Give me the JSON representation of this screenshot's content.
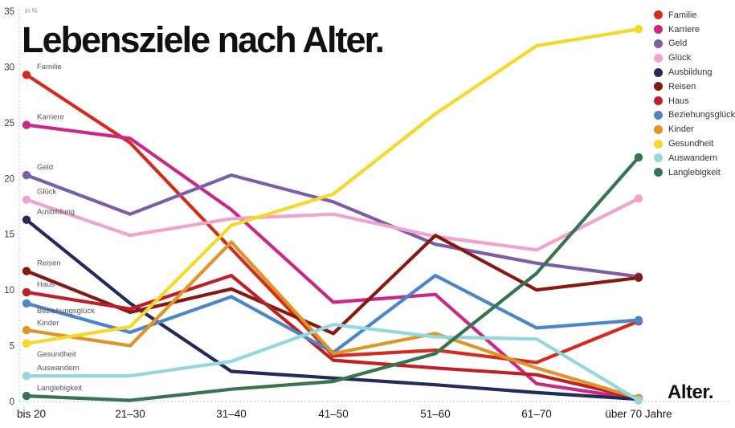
{
  "title": "Lebensziele nach Alter.",
  "unit_label": "in %",
  "x_axis_title": "Alter.",
  "chart_data": {
    "type": "line",
    "title": "Lebensziele nach Alter.",
    "ylabel": "in %",
    "xlabel": "Alter.",
    "ylim": [
      0,
      35
    ],
    "yticks": [
      0,
      5,
      10,
      15,
      20,
      25,
      30,
      35
    ],
    "grid": "dotted left axis and dotted zero baseline only",
    "legend_position": "top-right",
    "categories": [
      "bis 20",
      "21–30",
      "31–40",
      "41–50",
      "51–60",
      "61–70",
      "über 70 Jahre"
    ],
    "series": [
      {
        "name": "Familie",
        "color": "#d52b1e",
        "values": [
          29.3,
          23.2,
          13.7,
          4.1,
          4.6,
          3.5,
          7.2
        ]
      },
      {
        "name": "Karriere",
        "color": "#cc2687",
        "values": [
          24.8,
          23.6,
          17.2,
          8.9,
          9.6,
          1.6,
          0.2
        ]
      },
      {
        "name": "Geld",
        "color": "#7b5ea7",
        "values": [
          20.3,
          16.8,
          20.3,
          17.9,
          14.1,
          12.4,
          11.2
        ]
      },
      {
        "name": "Glück",
        "color": "#efa3cd",
        "values": [
          18.1,
          14.9,
          16.4,
          16.8,
          14.8,
          13.6,
          18.2
        ]
      },
      {
        "name": "Ausbildung",
        "color": "#232a5c",
        "values": [
          16.3,
          8.8,
          2.7,
          2.1,
          1.5,
          0.8,
          0.2
        ]
      },
      {
        "name": "Reisen",
        "color": "#871912",
        "values": [
          11.7,
          8.0,
          10.1,
          6.1,
          14.9,
          10.0,
          11.1
        ]
      },
      {
        "name": "Haus",
        "color": "#bf2026",
        "values": [
          9.8,
          8.3,
          11.3,
          3.7,
          3.0,
          2.4,
          0.3
        ]
      },
      {
        "name": "Beziehungsglück",
        "color": "#4a86c8",
        "values": [
          8.8,
          6.2,
          9.4,
          4.4,
          11.3,
          6.6,
          7.3
        ]
      },
      {
        "name": "Kinder",
        "color": "#df9426",
        "values": [
          6.4,
          5.0,
          14.3,
          4.3,
          6.1,
          3.0,
          0.3
        ]
      },
      {
        "name": "Gesundheit",
        "color": "#f7d827",
        "values": [
          5.2,
          6.7,
          15.8,
          18.6,
          25.8,
          31.9,
          33.4
        ]
      },
      {
        "name": "Auswandern",
        "color": "#93d8dd",
        "values": [
          2.3,
          2.3,
          3.6,
          6.9,
          5.8,
          5.6,
          0.1
        ]
      },
      {
        "name": "Langlebigkeit",
        "color": "#37744f",
        "values": [
          0.5,
          0.1,
          1.1,
          1.8,
          4.3,
          11.5,
          21.9
        ]
      }
    ]
  }
}
